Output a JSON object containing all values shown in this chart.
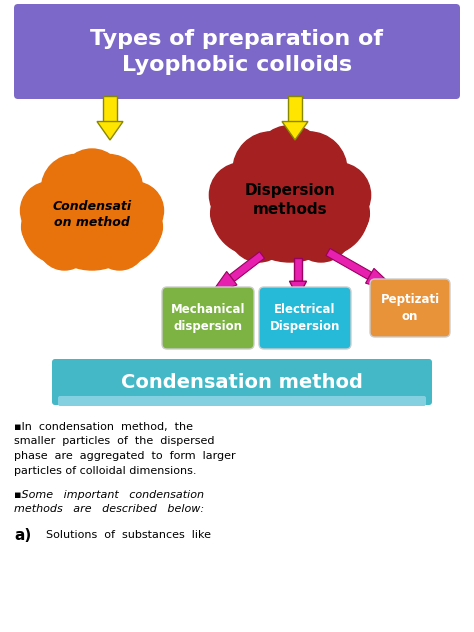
{
  "bg_color": "#ffffff",
  "title_box_color": "#7B68C8",
  "title_text": "Types of preparation of\nLyophobic colloids",
  "title_text_color": "#ffffff",
  "condensation_cloud_color": "#E8720C",
  "condensation_cloud_text": "Condensati\non method",
  "condensation_cloud_text_color": "#000000",
  "dispersion_cloud_color": "#A52020",
  "dispersion_cloud_text": "Dispersion\nmethods",
  "dispersion_cloud_text_color": "#000000",
  "arrow_yellow_color": "#FFE500",
  "arrow_yellow_edge": "#888800",
  "arrow_magenta_color": "#E820B0",
  "arrow_magenta_edge": "#990060",
  "mech_box_color": "#7CB342",
  "mech_box_text": "Mechanical\ndispersion",
  "mech_box_text_color": "#ffffff",
  "elec_box_color": "#26B9D8",
  "elec_box_text": "Electrical\nDispersion",
  "elec_box_text_color": "#ffffff",
  "pept_box_color": "#E8923A",
  "pept_box_text": "Peptizati\non",
  "pept_box_text_color": "#ffffff",
  "condensation_banner_color": "#45B8C8",
  "condensation_banner_text": "Condensation method",
  "condensation_banner_text_color": "#ffffff",
  "body_text1_line1": "▪In  condensation  method,  the",
  "body_text1_line2": "smaller  particles  of  the  dispersed",
  "body_text1_line3": "phase  are  aggregated  to  form  larger",
  "body_text1_line4": "particles of colloidal dimensions.",
  "body_text2_line1": "▪Some   important   condensation",
  "body_text2_line2": "methods   are   described   below:",
  "body_text3_label": "a)",
  "body_text3": "Solutions  of  substances  like",
  "body_text_color": "#000000"
}
